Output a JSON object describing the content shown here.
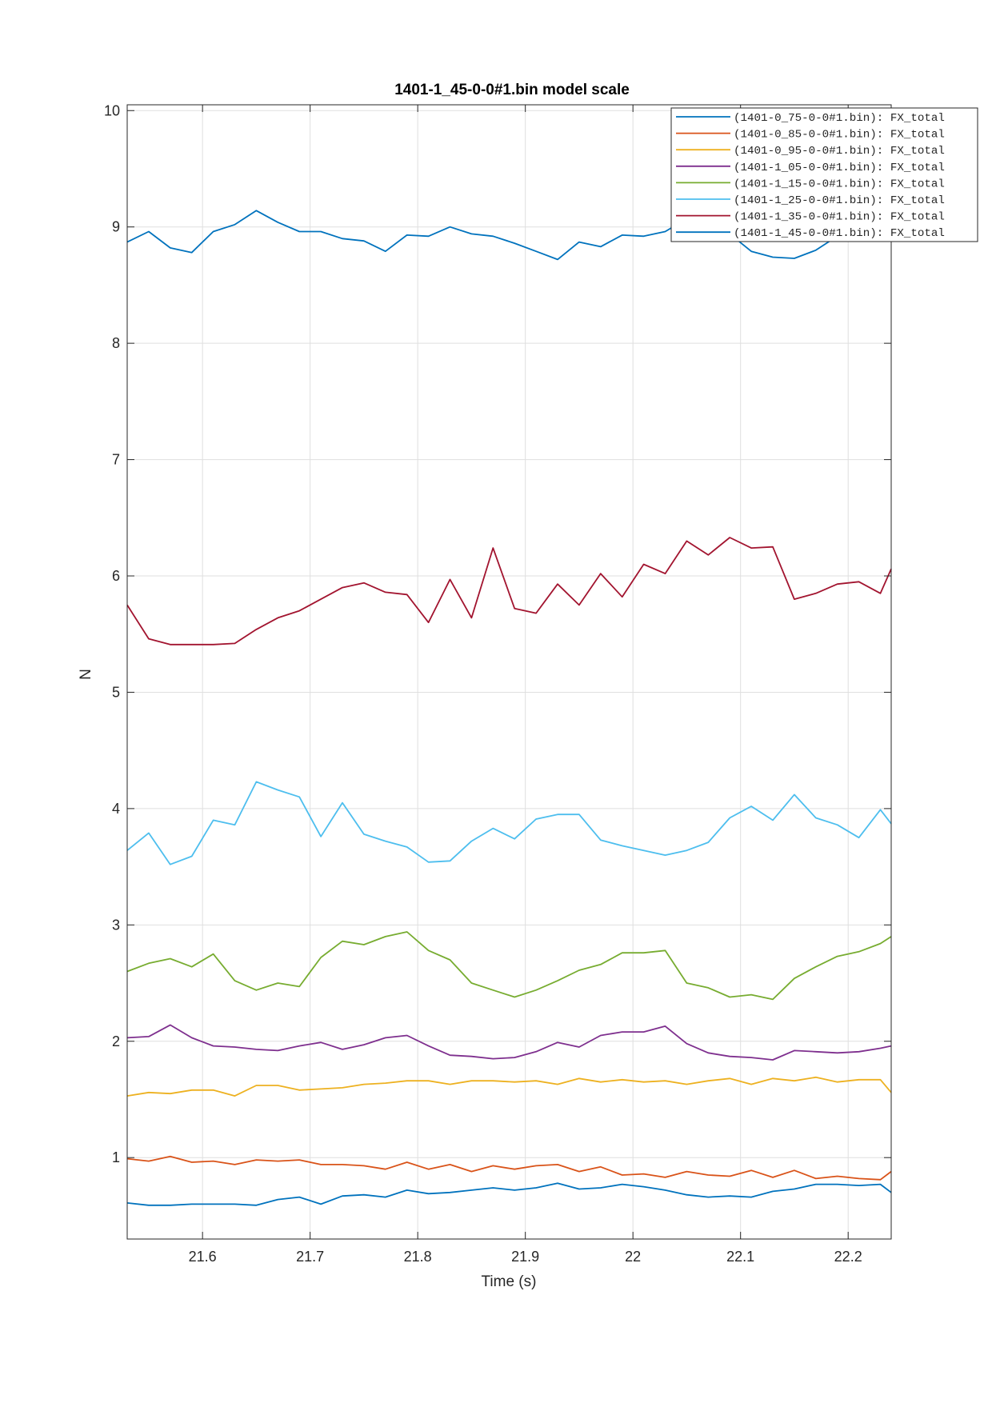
{
  "chart_data": {
    "type": "line",
    "title": "1401-1_45-0-0#1.bin  model scale",
    "xlabel": "Time (s)",
    "ylabel": "N",
    "xlim": [
      21.53,
      22.24
    ],
    "ylim": [
      0.3,
      10.05
    ],
    "xticks": [
      21.6,
      21.7,
      21.8,
      21.9,
      22.0,
      22.1,
      22.2
    ],
    "xtick_labels": [
      "21.6",
      "21.7",
      "21.8",
      "21.9",
      "22",
      "22.1",
      "22.2"
    ],
    "yticks": [
      1,
      2,
      3,
      4,
      5,
      6,
      7,
      8,
      9,
      10
    ],
    "ytick_labels": [
      "1",
      "2",
      "3",
      "4",
      "5",
      "6",
      "7",
      "8",
      "9",
      "10"
    ],
    "grid": true,
    "legend_position": "top-right",
    "x": [
      21.53,
      21.55,
      21.57,
      21.59,
      21.61,
      21.63,
      21.65,
      21.67,
      21.69,
      21.71,
      21.73,
      21.75,
      21.77,
      21.79,
      21.81,
      21.83,
      21.85,
      21.87,
      21.89,
      21.91,
      21.93,
      21.95,
      21.97,
      21.99,
      22.01,
      22.03,
      22.05,
      22.07,
      22.09,
      22.11,
      22.13,
      22.15,
      22.17,
      22.19,
      22.21,
      22.23,
      22.24
    ],
    "series": [
      {
        "name": "(1401-0_75-0-0#1.bin): FX_total",
        "color": "#0072BD",
        "values": [
          0.61,
          0.59,
          0.59,
          0.6,
          0.6,
          0.6,
          0.59,
          0.64,
          0.66,
          0.6,
          0.67,
          0.68,
          0.66,
          0.72,
          0.69,
          0.7,
          0.72,
          0.74,
          0.72,
          0.74,
          0.78,
          0.73,
          0.74,
          0.77,
          0.75,
          0.72,
          0.68,
          0.66,
          0.67,
          0.66,
          0.71,
          0.73,
          0.77,
          0.77,
          0.76,
          0.77,
          0.7
        ]
      },
      {
        "name": "(1401-0_85-0-0#1.bin): FX_total",
        "color": "#D95319",
        "values": [
          0.99,
          0.97,
          1.01,
          0.96,
          0.97,
          0.94,
          0.98,
          0.97,
          0.98,
          0.94,
          0.94,
          0.93,
          0.9,
          0.96,
          0.9,
          0.94,
          0.88,
          0.93,
          0.9,
          0.93,
          0.94,
          0.88,
          0.92,
          0.85,
          0.86,
          0.83,
          0.88,
          0.85,
          0.84,
          0.89,
          0.83,
          0.89,
          0.82,
          0.84,
          0.82,
          0.81,
          0.88
        ]
      },
      {
        "name": "(1401-0_95-0-0#1.bin): FX_total",
        "color": "#EDB120",
        "values": [
          1.53,
          1.56,
          1.55,
          1.58,
          1.58,
          1.53,
          1.62,
          1.62,
          1.58,
          1.59,
          1.6,
          1.63,
          1.64,
          1.66,
          1.66,
          1.63,
          1.66,
          1.66,
          1.65,
          1.66,
          1.63,
          1.68,
          1.65,
          1.67,
          1.65,
          1.66,
          1.63,
          1.66,
          1.68,
          1.63,
          1.68,
          1.66,
          1.69,
          1.65,
          1.67,
          1.67,
          1.56
        ]
      },
      {
        "name": "(1401-1_05-0-0#1.bin): FX_total",
        "color": "#7E2F8E",
        "values": [
          2.03,
          2.04,
          2.14,
          2.03,
          1.96,
          1.95,
          1.93,
          1.92,
          1.96,
          1.99,
          1.93,
          1.97,
          2.03,
          2.05,
          1.96,
          1.88,
          1.87,
          1.85,
          1.86,
          1.91,
          1.99,
          1.95,
          2.05,
          2.08,
          2.08,
          2.13,
          1.98,
          1.9,
          1.87,
          1.86,
          1.84,
          1.92,
          1.91,
          1.9,
          1.91,
          1.94,
          1.96
        ]
      },
      {
        "name": "(1401-1_15-0-0#1.bin): FX_total",
        "color": "#77AC30",
        "values": [
          2.6,
          2.67,
          2.71,
          2.64,
          2.75,
          2.52,
          2.44,
          2.5,
          2.47,
          2.72,
          2.86,
          2.83,
          2.9,
          2.94,
          2.78,
          2.7,
          2.5,
          2.44,
          2.38,
          2.44,
          2.52,
          2.61,
          2.66,
          2.76,
          2.76,
          2.78,
          2.5,
          2.46,
          2.38,
          2.4,
          2.36,
          2.54,
          2.64,
          2.73,
          2.77,
          2.84,
          2.9
        ]
      },
      {
        "name": "(1401-1_25-0-0#1.bin): FX_total",
        "color": "#4DBEEE",
        "values": [
          3.64,
          3.79,
          3.52,
          3.59,
          3.9,
          3.86,
          4.23,
          4.16,
          4.1,
          3.76,
          4.05,
          3.78,
          3.72,
          3.67,
          3.54,
          3.55,
          3.72,
          3.83,
          3.74,
          3.91,
          3.95,
          3.95,
          3.73,
          3.68,
          3.64,
          3.6,
          3.64,
          3.71,
          3.92,
          4.02,
          3.9,
          4.12,
          3.92,
          3.86,
          3.75,
          3.99,
          3.87
        ]
      },
      {
        "name": "(1401-1_35-0-0#1.bin): FX_total",
        "color": "#A2142F",
        "values": [
          5.75,
          5.46,
          5.41,
          5.41,
          5.41,
          5.42,
          5.54,
          5.64,
          5.7,
          5.8,
          5.9,
          5.94,
          5.86,
          5.84,
          5.6,
          5.97,
          5.64,
          6.24,
          5.72,
          5.68,
          5.93,
          5.75,
          6.02,
          5.82,
          6.1,
          6.02,
          6.3,
          6.18,
          6.33,
          6.24,
          6.25,
          5.8,
          5.85,
          5.93,
          5.95,
          5.85,
          6.06
        ]
      },
      {
        "name": "(1401-1_45-0-0#1.bin): FX_total",
        "color": "#0072BD",
        "values": [
          8.87,
          8.96,
          8.82,
          8.78,
          8.96,
          9.02,
          9.14,
          9.04,
          8.96,
          8.96,
          8.9,
          8.88,
          8.79,
          8.93,
          8.92,
          9.0,
          8.94,
          8.92,
          8.86,
          8.79,
          8.72,
          8.87,
          8.83,
          8.93,
          8.92,
          8.96,
          9.07,
          8.92,
          8.94,
          8.79,
          8.74,
          8.73,
          8.8,
          8.92,
          8.98,
          9.08,
          9.18
        ]
      }
    ]
  }
}
